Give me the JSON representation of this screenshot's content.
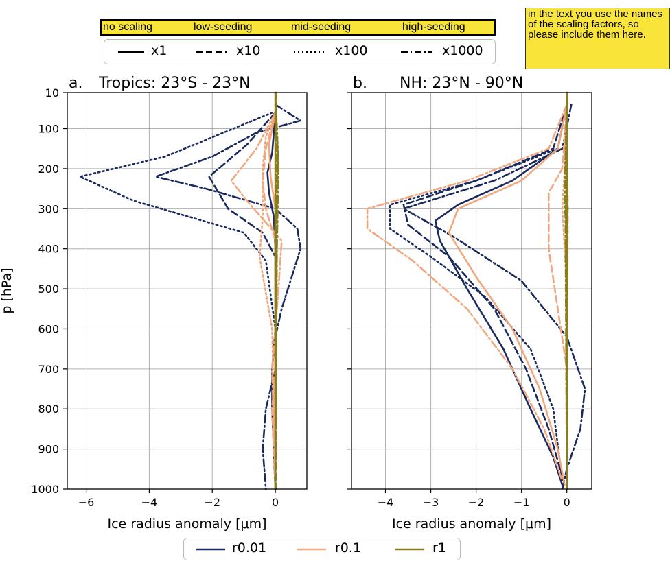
{
  "annotation_bar": {
    "labels": [
      "no scaling",
      "low-seeding",
      "mid-seeding",
      "high-seeding"
    ]
  },
  "sticky_note": {
    "text": "in the text you use the names of the scaling factors, so please include them here."
  },
  "scaling_legend": {
    "items": [
      {
        "label": "x1",
        "dash": "solid"
      },
      {
        "label": "x10",
        "dash": "dashed"
      },
      {
        "label": "x100",
        "dash": "dotted"
      },
      {
        "label": "x1000",
        "dash": "dashdot"
      }
    ]
  },
  "radius_legend": {
    "items": [
      {
        "label": "r0.01",
        "color": "#1b2a5e"
      },
      {
        "label": "r0.1",
        "color": "#f0a77e"
      },
      {
        "label": "r1",
        "color": "#8a7d1c"
      }
    ]
  },
  "colors": {
    "r0.01": "#1b2a5e",
    "r0.1": "#f0a77e",
    "r1": "#8a7d1c",
    "axis": "#000000",
    "grid": "#b0b0b0"
  },
  "chart_data": [
    {
      "type": "line",
      "title_prefix": "a.",
      "title": "Tropics: 23°S - 23°N",
      "xlabel": "Ice radius anomaly [μm]",
      "ylabel": "p [hPa]",
      "xlim": [
        -6.6,
        1.0
      ],
      "ylim": [
        1000,
        10
      ],
      "xticks": [
        -6,
        -4,
        -2,
        0
      ],
      "xtick_labels": [
        "−6",
        "−4",
        "−2",
        "0"
      ],
      "yticks": [
        10,
        100,
        200,
        300,
        400,
        500,
        600,
        700,
        800,
        900,
        1000
      ],
      "ytick_labels": [
        "10",
        "100",
        "200",
        "300",
        "400",
        "500",
        "600",
        "700",
        "800",
        "900",
        "1000"
      ],
      "grid": true,
      "series": [
        {
          "radius": "r0.01",
          "scaling": "x1",
          "points": [
            [
              0,
              60
            ],
            [
              -0.1,
              160
            ],
            [
              -0.25,
              210
            ],
            [
              -0.2,
              260
            ],
            [
              -0.05,
              320
            ],
            [
              0,
              400
            ],
            [
              0,
              600
            ],
            [
              -0.1,
              700
            ],
            [
              -0.1,
              800
            ],
            [
              -0.05,
              900
            ],
            [
              0,
              1000
            ]
          ]
        },
        {
          "radius": "r0.01",
          "scaling": "x10",
          "points": [
            [
              0,
              60
            ],
            [
              -0.9,
              140
            ],
            [
              -2.1,
              220
            ],
            [
              -1.5,
              300
            ],
            [
              -0.4,
              360
            ],
            [
              0,
              420
            ],
            [
              0,
              1000
            ]
          ]
        },
        {
          "radius": "r0.01",
          "scaling": "x100",
          "points": [
            [
              -0.1,
              60
            ],
            [
              -3.5,
              170
            ],
            [
              -6.2,
              220
            ],
            [
              -4.5,
              280
            ],
            [
              -1.0,
              360
            ],
            [
              -0.3,
              430
            ],
            [
              0,
              600
            ],
            [
              0,
              1000
            ]
          ]
        },
        {
          "radius": "r0.01",
          "scaling": "x1000",
          "points": [
            [
              0,
              40
            ],
            [
              0.8,
              80
            ],
            [
              -0.6,
              110
            ],
            [
              -2.0,
              170
            ],
            [
              -3.8,
              220
            ],
            [
              -2.2,
              250
            ],
            [
              0,
              300
            ],
            [
              0.7,
              350
            ],
            [
              0.8,
              400
            ],
            [
              0.2,
              550
            ],
            [
              0,
              620
            ],
            [
              0,
              700
            ],
            [
              -0.3,
              800
            ],
            [
              -0.4,
              900
            ],
            [
              -0.3,
              1000
            ]
          ]
        },
        {
          "radius": "r0.1",
          "scaling": "x1",
          "points": [
            [
              0,
              60
            ],
            [
              -0.2,
              140
            ],
            [
              -0.15,
              220
            ],
            [
              0,
              300
            ],
            [
              0,
              1000
            ]
          ]
        },
        {
          "radius": "r0.1",
          "scaling": "x10",
          "points": [
            [
              0,
              60
            ],
            [
              -0.3,
              150
            ],
            [
              -0.4,
              230
            ],
            [
              -0.3,
              300
            ],
            [
              0,
              380
            ],
            [
              0,
              700
            ],
            [
              -0.1,
              800
            ],
            [
              0,
              1000
            ]
          ]
        },
        {
          "radius": "r0.1",
          "scaling": "x100",
          "points": [
            [
              0,
              60
            ],
            [
              -0.3,
              120
            ],
            [
              -0.4,
              200
            ],
            [
              -0.4,
              320
            ],
            [
              -0.5,
              420
            ],
            [
              -0.1,
              600
            ],
            [
              0,
              1000
            ]
          ]
        },
        {
          "radius": "r0.1",
          "scaling": "x1000",
          "points": [
            [
              0,
              60
            ],
            [
              -0.6,
              150
            ],
            [
              -1.4,
              230
            ],
            [
              -0.9,
              280
            ],
            [
              0.2,
              380
            ],
            [
              0.1,
              500
            ],
            [
              0,
              600
            ],
            [
              -0.1,
              700
            ],
            [
              0,
              1000
            ]
          ]
        },
        {
          "radius": "r1",
          "scaling": "x1",
          "points": [
            [
              0,
              10
            ],
            [
              0,
              1000
            ]
          ]
        },
        {
          "radius": "r1",
          "scaling": "x10",
          "points": [
            [
              0.02,
              10
            ],
            [
              0.05,
              200
            ],
            [
              0.02,
              400
            ],
            [
              0.02,
              1000
            ]
          ]
        },
        {
          "radius": "r1",
          "scaling": "x100",
          "points": [
            [
              0,
              10
            ],
            [
              0.08,
              150
            ],
            [
              0.05,
              300
            ],
            [
              0,
              1000
            ]
          ]
        },
        {
          "radius": "r1",
          "scaling": "x1000",
          "points": [
            [
              0,
              10
            ],
            [
              0.1,
              200
            ],
            [
              0.05,
              400
            ],
            [
              0,
              1000
            ]
          ]
        }
      ]
    },
    {
      "type": "line",
      "title_prefix": "b.",
      "title": "NH: 23°N - 90°N",
      "xlabel": "Ice radius anomaly [μm]",
      "ylabel": "",
      "xlim": [
        -4.75,
        0.55
      ],
      "ylim": [
        1000,
        10
      ],
      "xticks": [
        -4,
        -3,
        -2,
        -1,
        0
      ],
      "xtick_labels": [
        "−4",
        "−3",
        "−2",
        "−1",
        "0"
      ],
      "yticks": [
        10,
        100,
        200,
        300,
        400,
        500,
        600,
        700,
        800,
        900,
        1000
      ],
      "grid": true,
      "series": [
        {
          "radius": "r0.01",
          "scaling": "x1",
          "points": [
            [
              0,
              40
            ],
            [
              -0.2,
              150
            ],
            [
              -1.2,
              230
            ],
            [
              -2.4,
              290
            ],
            [
              -2.9,
              330
            ],
            [
              -2.8,
              380
            ],
            [
              -2.2,
              500
            ],
            [
              -1.4,
              650
            ],
            [
              -0.8,
              800
            ],
            [
              -0.3,
              920
            ],
            [
              -0.1,
              990
            ]
          ]
        },
        {
          "radius": "r0.01",
          "scaling": "x10",
          "points": [
            [
              0,
              40
            ],
            [
              -0.3,
              150
            ],
            [
              -2.0,
              230
            ],
            [
              -3.6,
              290
            ],
            [
              -3.5,
              340
            ],
            [
              -2.6,
              420
            ],
            [
              -1.6,
              550
            ],
            [
              -0.9,
              700
            ],
            [
              -0.4,
              850
            ],
            [
              -0.1,
              970
            ]
          ]
        },
        {
          "radius": "r0.01",
          "scaling": "x100",
          "points": [
            [
              0,
              40
            ],
            [
              -0.2,
              150
            ],
            [
              -2.0,
              230
            ],
            [
              -3.9,
              290
            ],
            [
              -3.9,
              350
            ],
            [
              -3.0,
              420
            ],
            [
              -1.8,
              520
            ],
            [
              -0.8,
              650
            ],
            [
              -0.3,
              800
            ],
            [
              -0.1,
              980
            ]
          ]
        },
        {
          "radius": "r0.01",
          "scaling": "x1000",
          "points": [
            [
              0.1,
              40
            ],
            [
              -0.1,
              150
            ],
            [
              -1.6,
              230
            ],
            [
              -3.6,
              300
            ],
            [
              -2.5,
              370
            ],
            [
              -1.0,
              480
            ],
            [
              0,
              620
            ],
            [
              0.4,
              750
            ],
            [
              0.3,
              850
            ],
            [
              0,
              950
            ],
            [
              -0.1,
              1000
            ]
          ]
        },
        {
          "radius": "r0.1",
          "scaling": "x1",
          "points": [
            [
              0,
              40
            ],
            [
              -0.2,
              150
            ],
            [
              -1.0,
              230
            ],
            [
              -2.4,
              300
            ],
            [
              -2.6,
              360
            ],
            [
              -2.0,
              470
            ],
            [
              -1.2,
              600
            ],
            [
              -0.6,
              750
            ],
            [
              -0.2,
              900
            ],
            [
              -0.05,
              990
            ]
          ]
        },
        {
          "radius": "r0.1",
          "scaling": "x10",
          "points": [
            [
              0,
              40
            ],
            [
              -0.1,
              200
            ],
            [
              -0.4,
              260
            ],
            [
              -0.4,
              400
            ],
            [
              -0.2,
              550
            ],
            [
              0,
              700
            ],
            [
              0,
              1000
            ]
          ]
        },
        {
          "radius": "r0.1",
          "scaling": "x100",
          "points": [
            [
              0,
              40
            ],
            [
              -0.05,
              200
            ],
            [
              -0.1,
              300
            ],
            [
              0,
              500
            ],
            [
              0,
              1000
            ]
          ]
        },
        {
          "radius": "r0.1",
          "scaling": "x1000",
          "points": [
            [
              0,
              40
            ],
            [
              -0.4,
              150
            ],
            [
              -2.2,
              230
            ],
            [
              -4.4,
              300
            ],
            [
              -4.4,
              350
            ],
            [
              -3.4,
              430
            ],
            [
              -2.2,
              550
            ],
            [
              -1.2,
              700
            ],
            [
              -0.5,
              850
            ],
            [
              -0.1,
              980
            ]
          ]
        },
        {
          "radius": "r1",
          "scaling": "x1",
          "points": [
            [
              0,
              10
            ],
            [
              0,
              1000
            ]
          ]
        },
        {
          "radius": "r1",
          "scaling": "x10",
          "points": [
            [
              0,
              10
            ],
            [
              0.02,
              300
            ],
            [
              0,
              1000
            ]
          ]
        },
        {
          "radius": "r1",
          "scaling": "x100",
          "points": [
            [
              0,
              10
            ],
            [
              -0.02,
              300
            ],
            [
              0,
              1000
            ]
          ]
        },
        {
          "radius": "r1",
          "scaling": "x1000",
          "points": [
            [
              0,
              10
            ],
            [
              -0.05,
              280
            ],
            [
              -0.03,
              320
            ],
            [
              0,
              1000
            ]
          ]
        }
      ]
    }
  ]
}
